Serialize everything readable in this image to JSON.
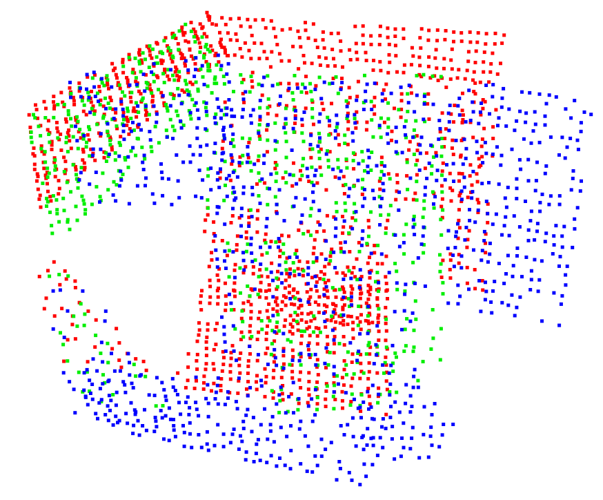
{
  "scene": {
    "background_color": "#ffffff",
    "clouds": [
      {
        "name": "red",
        "color": "#ff0000"
      },
      {
        "name": "green",
        "color": "#00ee00"
      },
      {
        "name": "blue",
        "color": "#0000ff"
      }
    ]
  }
}
